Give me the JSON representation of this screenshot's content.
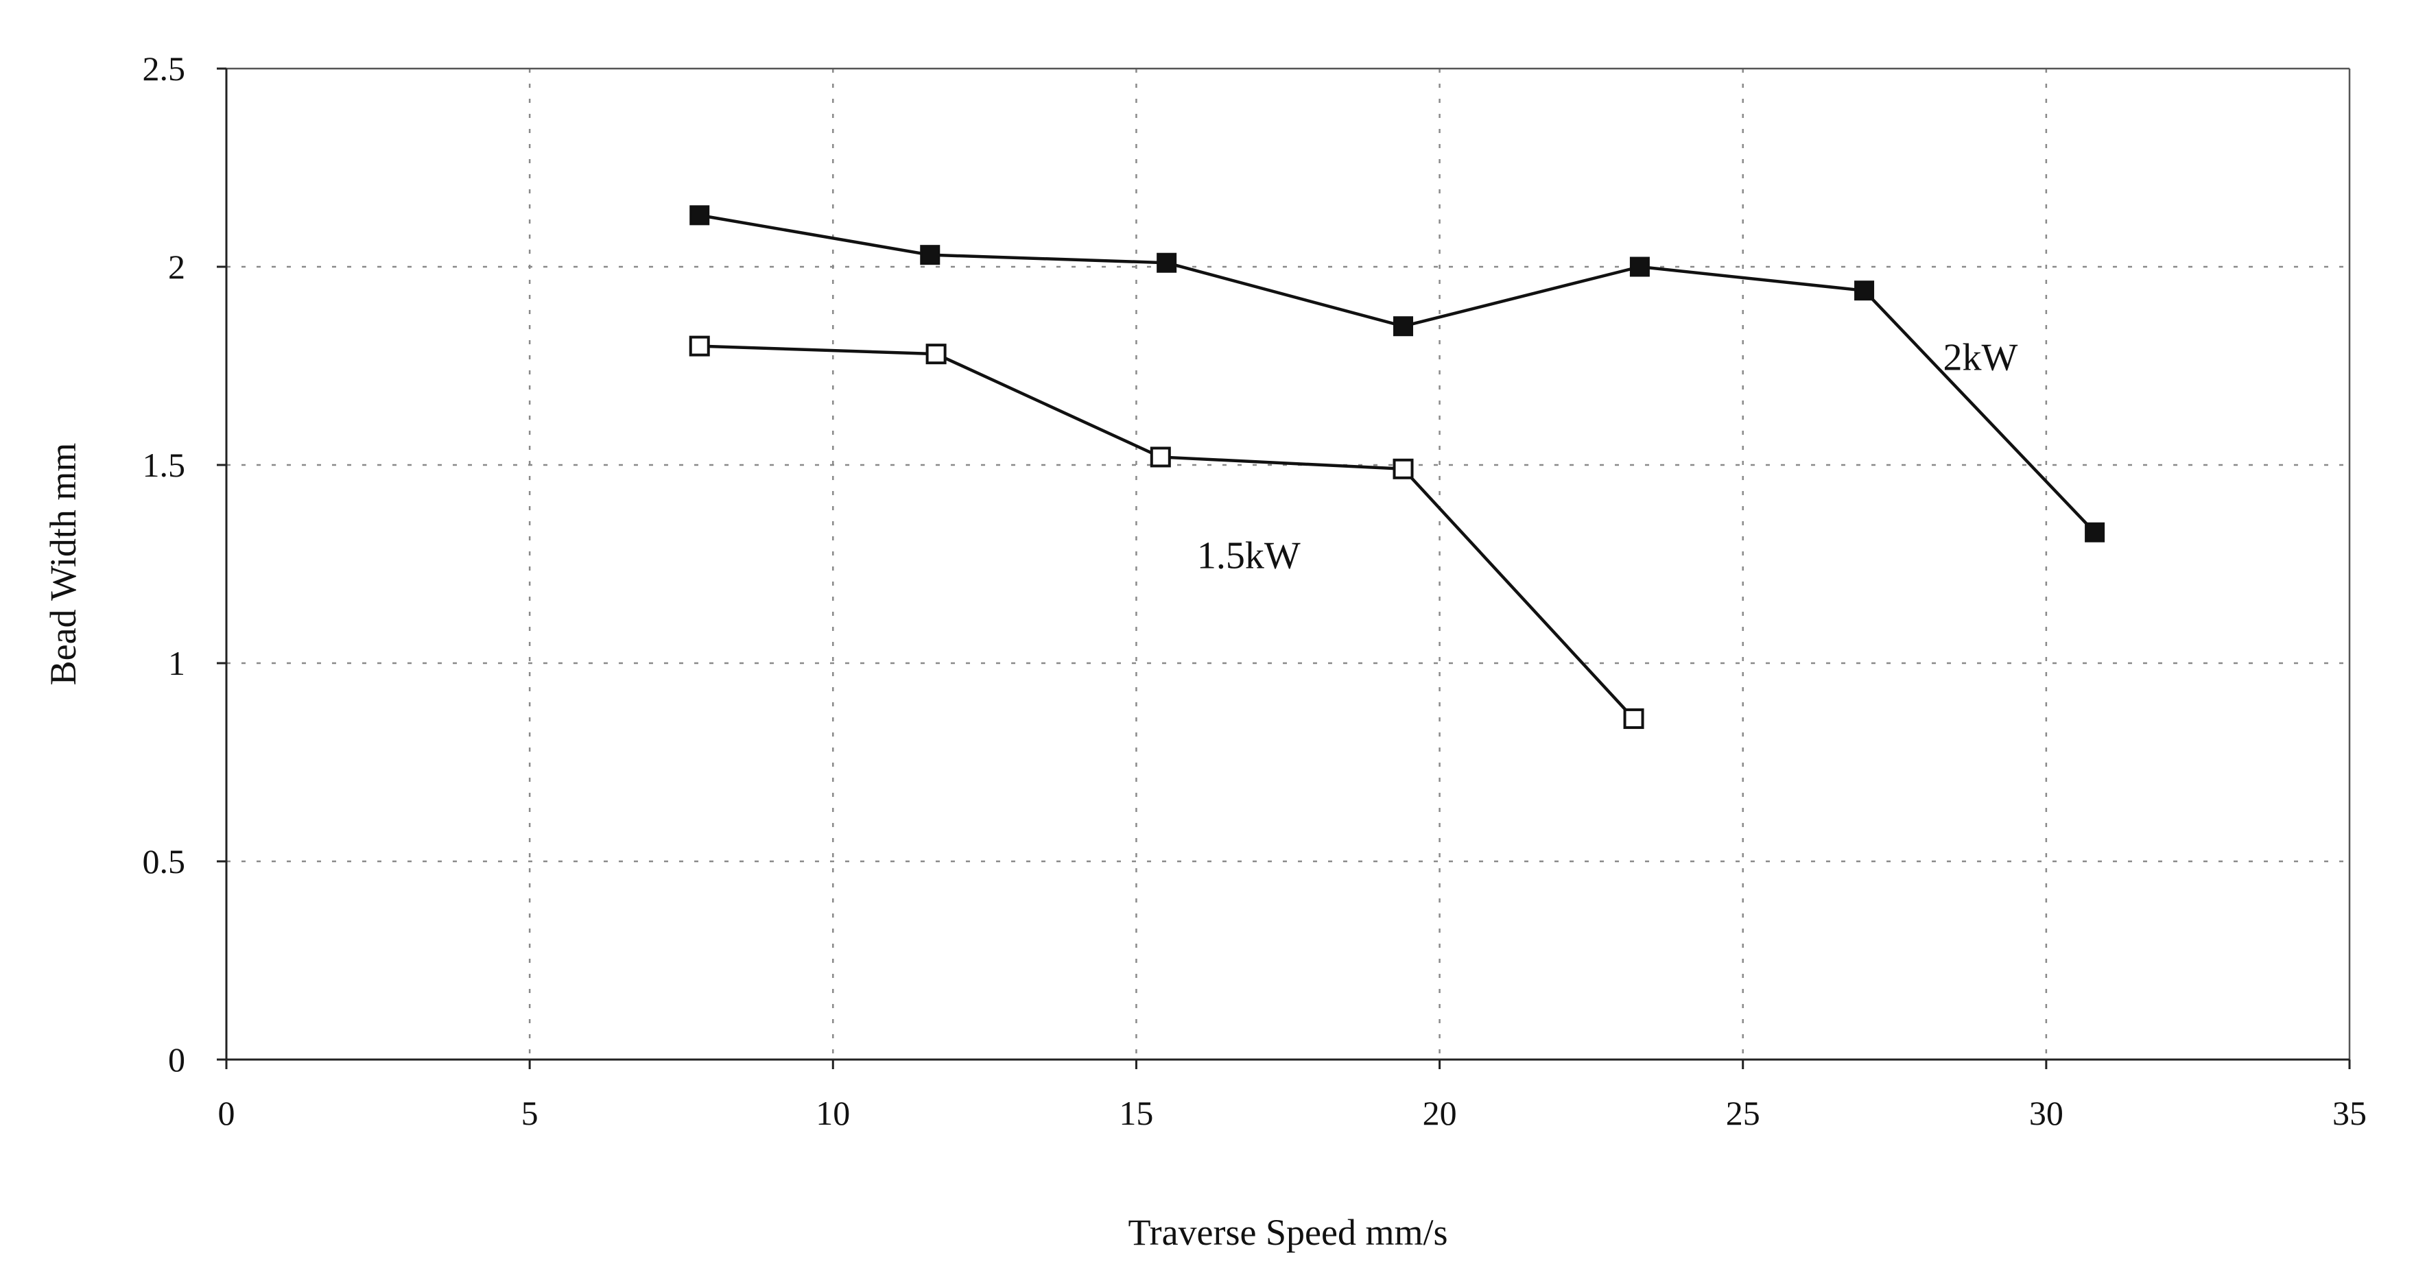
{
  "chart_data": {
    "type": "line",
    "title": "",
    "xlabel": "Traverse Speed mm/s",
    "ylabel": "Bead Width mm",
    "xlim": [
      0,
      35
    ],
    "ylim": [
      0,
      2.5
    ],
    "x_ticks": [
      "0",
      "5",
      "10",
      "15",
      "20",
      "25",
      "30",
      "35"
    ],
    "y_ticks": [
      "0",
      "0.5",
      "1",
      "1.5",
      "2",
      "2.5"
    ],
    "grid": true,
    "legend": "inline labels",
    "series": [
      {
        "name": "2kW",
        "marker": "filled-square",
        "color": "#111111",
        "x": [
          7.8,
          11.6,
          15.5,
          19.4,
          23.3,
          27.0,
          30.8
        ],
        "y": [
          2.13,
          2.03,
          2.01,
          1.85,
          2.0,
          1.94,
          1.33
        ]
      },
      {
        "name": "1.5kW",
        "marker": "open-square",
        "color": "#111111",
        "x": [
          7.8,
          11.7,
          15.4,
          19.4,
          23.2
        ],
        "y": [
          1.8,
          1.78,
          1.52,
          1.49,
          0.86
        ]
      }
    ],
    "annotations": [
      {
        "text": "2kW",
        "series": "2kW"
      },
      {
        "text": "1.5kW",
        "series": "1.5kW"
      }
    ]
  }
}
